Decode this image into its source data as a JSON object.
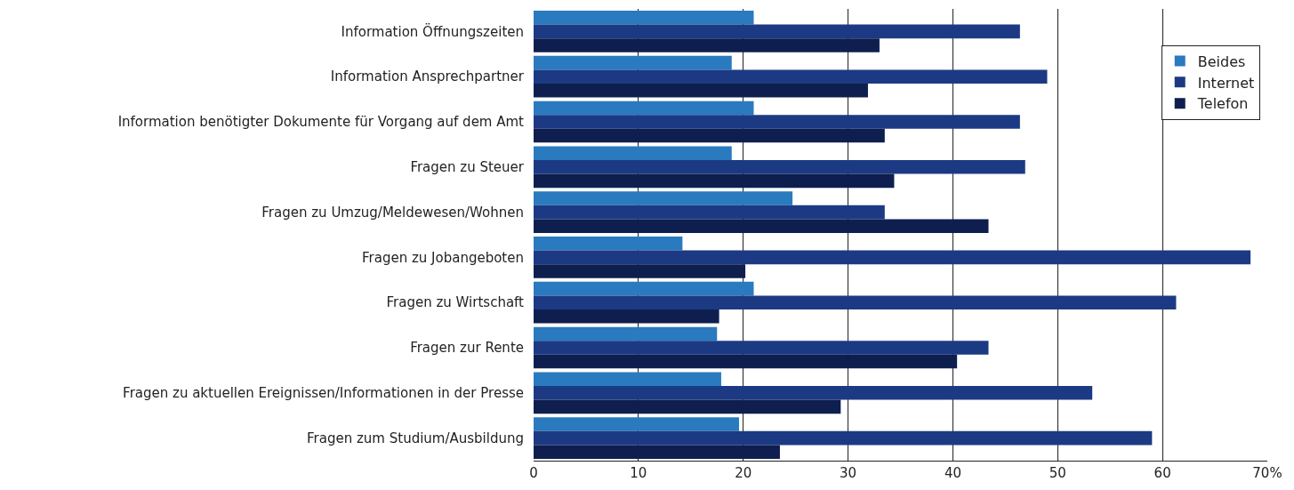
{
  "chart_data": {
    "type": "bar",
    "orientation": "horizontal",
    "categories": [
      "Information Öffnungszeiten",
      "Information Ansprechpartner",
      "Information benötigter Dokumente für Vorgang auf dem Amt",
      "Fragen zu Steuer",
      "Fragen zu Umzug/Meldewesen/Wohnen",
      "Fragen zu Jobangeboten",
      "Fragen zu Wirtschaft",
      "Fragen zur Rente",
      "Fragen zu aktuellen Ereignissen/Informationen in der Presse",
      "Fragen zum Studium/Ausbildung"
    ],
    "series": [
      {
        "name": "Beides",
        "color": "#2a7abf",
        "values": [
          21.0,
          18.9,
          21.0,
          18.9,
          24.7,
          14.2,
          21.0,
          17.5,
          17.9,
          19.6
        ]
      },
      {
        "name": "Internet",
        "color": "#1c3a84",
        "values": [
          46.4,
          49.0,
          46.4,
          46.9,
          33.5,
          68.4,
          61.3,
          43.4,
          53.3,
          59.0
        ]
      },
      {
        "name": "Telefon",
        "color": "#0e1f4f",
        "values": [
          33.0,
          31.9,
          33.5,
          34.4,
          43.4,
          20.2,
          17.7,
          40.4,
          29.3,
          23.5
        ]
      }
    ],
    "xlim": [
      0,
      70
    ],
    "xticks": [
      0,
      10,
      20,
      30,
      40,
      50,
      60,
      {
        "value": 70,
        "label": "70%"
      }
    ],
    "grid": "x",
    "legend": "top right"
  }
}
